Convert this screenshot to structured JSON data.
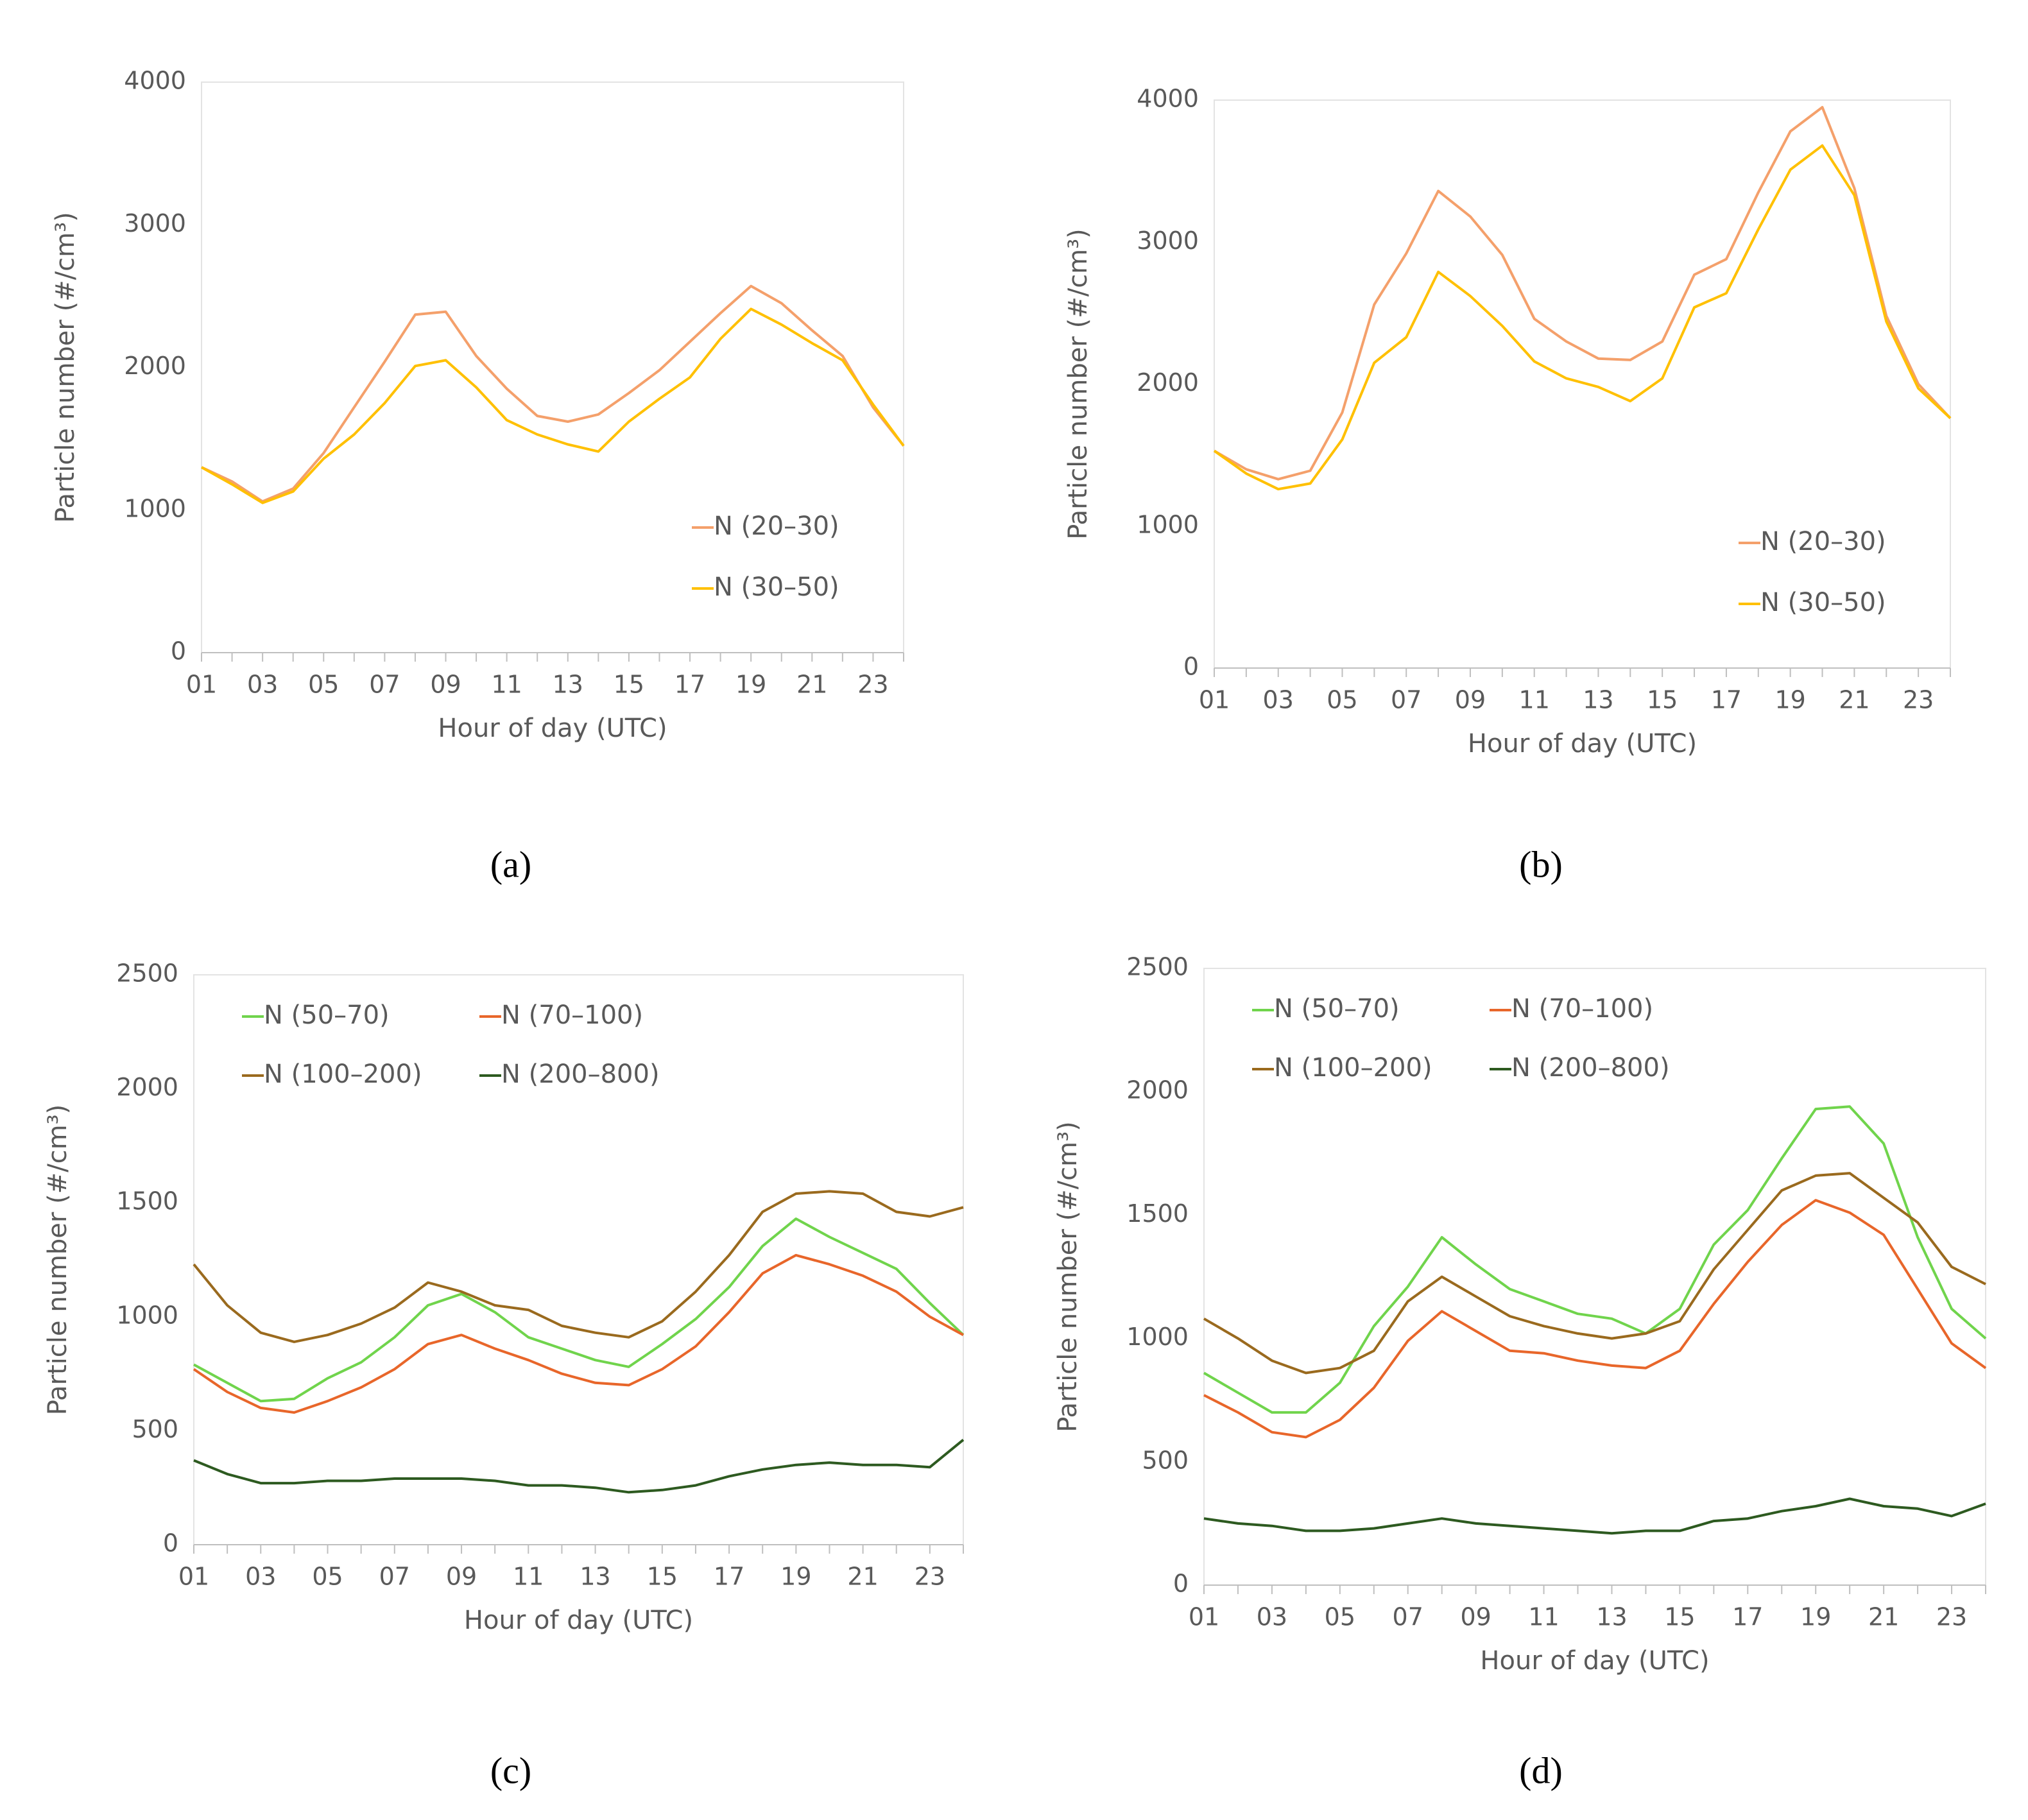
{
  "chart_data": [
    {
      "type": "line",
      "label": "(a)",
      "y_label": "Particle number (#/cm³)",
      "x_label": "Hour of day (UTC)",
      "categories": [
        "01",
        null,
        "03",
        null,
        "05",
        null,
        "07",
        null,
        "09",
        null,
        "11",
        null,
        "13",
        null,
        "15",
        null,
        "17",
        null,
        "19",
        null,
        "21",
        null,
        "23",
        null
      ],
      "ylim": [
        0,
        4000
      ],
      "yticks": [
        0,
        1000,
        2000,
        3000,
        4000
      ],
      "grid": false,
      "legend": "lower right",
      "series": [
        {
          "name": "N (20–30)",
          "color": "#f4a06b",
          "values": [
            1300,
            1200,
            1060,
            1150,
            1400,
            1720,
            2040,
            2370,
            2390,
            2080,
            1850,
            1660,
            1620,
            1670,
            1820,
            1980,
            2180,
            2380,
            2570,
            2450,
            2260,
            2080,
            1720,
            1450
          ]
        },
        {
          "name": "N (30–50)",
          "color": "#ffc000",
          "values": [
            1300,
            1180,
            1050,
            1130,
            1360,
            1530,
            1750,
            2010,
            2050,
            1860,
            1630,
            1530,
            1460,
            1410,
            1620,
            1780,
            1930,
            2200,
            2410,
            2300,
            2170,
            2050,
            1740,
            1450
          ]
        }
      ]
    },
    {
      "type": "line",
      "label": "(b)",
      "y_label": "Particle number (#/cm³)",
      "x_label": "Hour of day (UTC)",
      "categories": [
        "01",
        null,
        "03",
        null,
        "05",
        null,
        "07",
        null,
        "09",
        null,
        "11",
        null,
        "13",
        null,
        "15",
        null,
        "17",
        null,
        "19",
        null,
        "21",
        null,
        "23",
        null
      ],
      "ylim": [
        0,
        4000
      ],
      "yticks": [
        0,
        1000,
        2000,
        3000,
        4000
      ],
      "grid": false,
      "legend": "lower right",
      "series": [
        {
          "name": "N (20–30)",
          "color": "#f4a06b",
          "values": [
            1530,
            1400,
            1330,
            1390,
            1800,
            2560,
            2920,
            3360,
            3180,
            2910,
            2460,
            2300,
            2180,
            2170,
            2300,
            2770,
            2880,
            3350,
            3780,
            3950,
            3380,
            2480,
            2000,
            1760
          ]
        },
        {
          "name": "N (30–50)",
          "color": "#ffc000",
          "values": [
            1530,
            1370,
            1260,
            1300,
            1610,
            2150,
            2330,
            2790,
            2620,
            2410,
            2160,
            2040,
            1980,
            1880,
            2040,
            2540,
            2640,
            3090,
            3510,
            3680,
            3330,
            2440,
            1970,
            1760
          ]
        }
      ]
    },
    {
      "type": "line",
      "label": "(c)",
      "y_label": "Particle number (#/cm³)",
      "x_label": "Hour of day (UTC)",
      "categories": [
        "01",
        null,
        "03",
        null,
        "05",
        null,
        "07",
        null,
        "09",
        null,
        "11",
        null,
        "13",
        null,
        "15",
        null,
        "17",
        null,
        "19",
        null,
        "21",
        null,
        "23",
        null
      ],
      "ylim": [
        0,
        2500
      ],
      "yticks": [
        0,
        500,
        1000,
        1500,
        2000,
        2500
      ],
      "grid": false,
      "legend": "upper left",
      "series": [
        {
          "name": "N (50–70)",
          "color": "#70d44c",
          "values": [
            790,
            710,
            630,
            640,
            730,
            800,
            910,
            1050,
            1100,
            1020,
            910,
            860,
            810,
            780,
            880,
            990,
            1130,
            1310,
            1430,
            1350,
            1280,
            1210,
            1060,
            920
          ]
        },
        {
          "name": "N (70–100)",
          "color": "#e8662a",
          "values": [
            770,
            670,
            600,
            580,
            630,
            690,
            770,
            880,
            920,
            860,
            810,
            750,
            710,
            700,
            770,
            870,
            1020,
            1190,
            1270,
            1230,
            1180,
            1110,
            1000,
            920
          ]
        },
        {
          "name": "N (100–200)",
          "color": "#9a6a1e",
          "values": [
            1230,
            1050,
            930,
            890,
            920,
            970,
            1040,
            1150,
            1110,
            1050,
            1030,
            960,
            930,
            910,
            980,
            1110,
            1270,
            1460,
            1540,
            1550,
            1540,
            1460,
            1440,
            1480
          ]
        },
        {
          "name": "N (200–800)",
          "color": "#2d5a20",
          "values": [
            370,
            310,
            270,
            270,
            280,
            280,
            290,
            290,
            290,
            280,
            260,
            260,
            250,
            230,
            240,
            260,
            300,
            330,
            350,
            360,
            350,
            350,
            340,
            460
          ]
        }
      ]
    },
    {
      "type": "line",
      "label": "(d)",
      "y_label": "Particle number (#/cm³)",
      "x_label": "Hour of day (UTC)",
      "categories": [
        "01",
        null,
        "03",
        null,
        "05",
        null,
        "07",
        null,
        "09",
        null,
        "11",
        null,
        "13",
        null,
        "15",
        null,
        "17",
        null,
        "19",
        null,
        "21",
        null,
        "23",
        null
      ],
      "ylim": [
        0,
        2500
      ],
      "yticks": [
        0,
        500,
        1000,
        1500,
        2000,
        2500
      ],
      "grid": false,
      "legend": "upper left",
      "series": [
        {
          "name": "N (50–70)",
          "color": "#70d44c",
          "values": [
            860,
            780,
            700,
            700,
            820,
            1050,
            1210,
            1410,
            1300,
            1200,
            1150,
            1100,
            1080,
            1020,
            1120,
            1380,
            1520,
            1730,
            1930,
            1940,
            1790,
            1410,
            1120,
            1000
          ]
        },
        {
          "name": "N (70–100)",
          "color": "#e8662a",
          "values": [
            770,
            700,
            620,
            600,
            670,
            800,
            990,
            1110,
            1030,
            950,
            940,
            910,
            890,
            880,
            950,
            1140,
            1310,
            1460,
            1560,
            1510,
            1420,
            1200,
            980,
            880
          ]
        },
        {
          "name": "N (100–200)",
          "color": "#9a6a1e",
          "values": [
            1080,
            1000,
            910,
            860,
            880,
            950,
            1150,
            1250,
            1170,
            1090,
            1050,
            1020,
            1000,
            1020,
            1070,
            1280,
            1440,
            1600,
            1660,
            1670,
            1570,
            1470,
            1290,
            1220
          ]
        },
        {
          "name": "N (200–800)",
          "color": "#2d5a20",
          "values": [
            270,
            250,
            240,
            220,
            220,
            230,
            250,
            270,
            250,
            240,
            230,
            220,
            210,
            220,
            220,
            260,
            270,
            300,
            320,
            350,
            320,
            310,
            280,
            330
          ]
        }
      ]
    }
  ]
}
